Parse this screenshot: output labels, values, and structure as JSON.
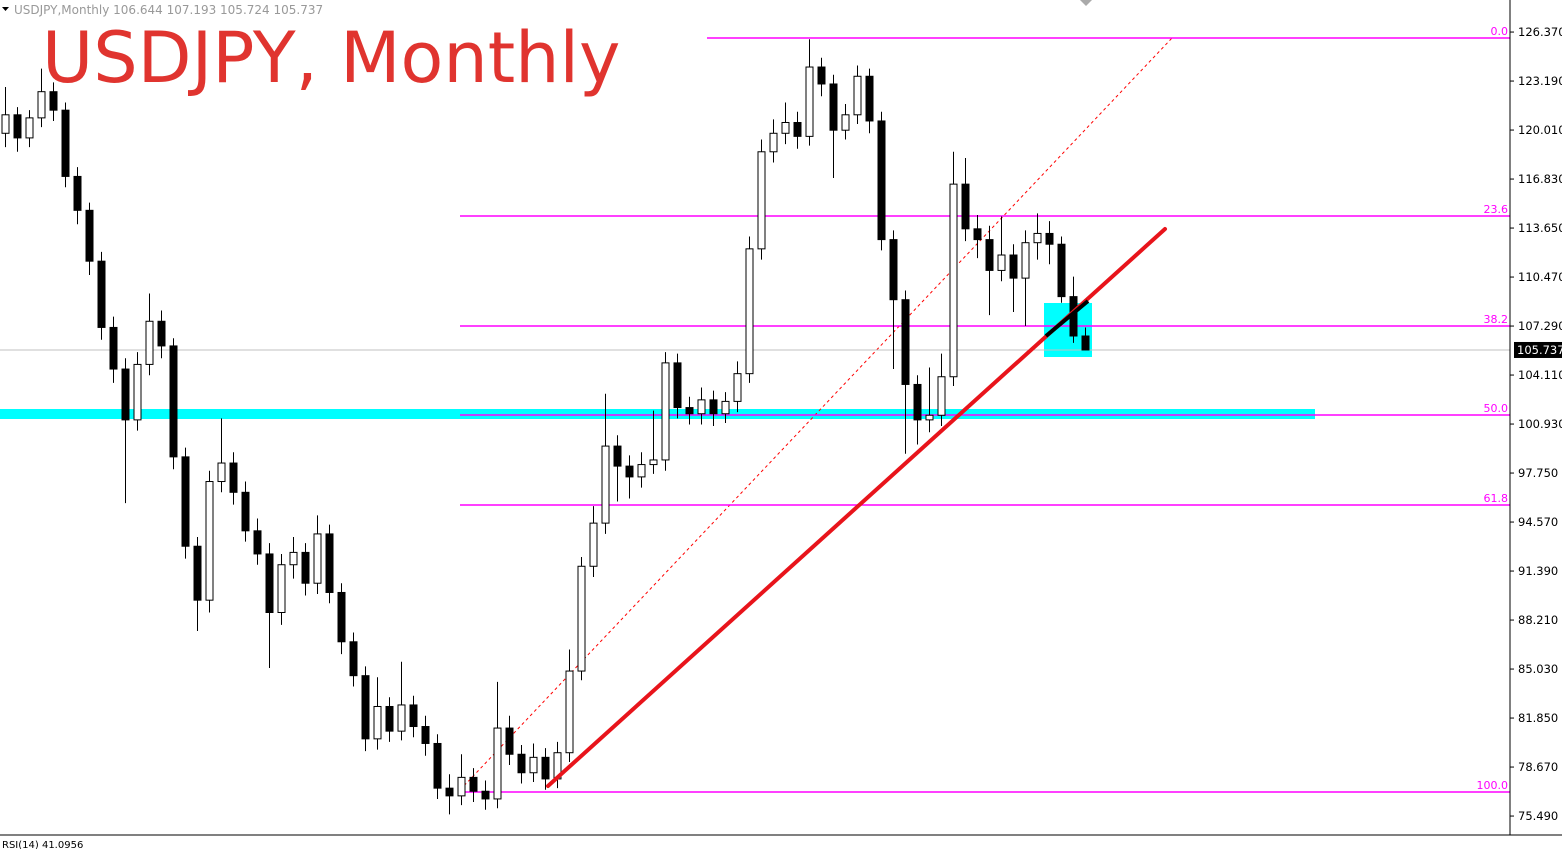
{
  "chart_data": {
    "type": "candlestick",
    "title": "USDJPY, Monthly",
    "symbol_header": "USDJPY,Monthly  106.644 107.193 105.724 105.737",
    "indicator_label": "RSI(14) 41.0956",
    "last_price": 105.737,
    "ylim": [
      74.26,
      128.45
    ],
    "yticks": [
      {
        "value": 126.37,
        "label": "126.370"
      },
      {
        "value": 123.19,
        "label": "123.190"
      },
      {
        "value": 120.01,
        "label": "120.010"
      },
      {
        "value": 116.83,
        "label": "116.830"
      },
      {
        "value": 113.65,
        "label": "113.650"
      },
      {
        "value": 110.47,
        "label": "110.470"
      },
      {
        "value": 107.29,
        "label": "107.290"
      },
      {
        "value": 104.11,
        "label": "104.110"
      },
      {
        "value": 100.93,
        "label": "100.930"
      },
      {
        "value": 97.75,
        "label": "97.750"
      },
      {
        "value": 94.57,
        "label": "94.570"
      },
      {
        "value": 91.39,
        "label": "91.390"
      },
      {
        "value": 88.21,
        "label": "88.210"
      },
      {
        "value": 85.03,
        "label": "85.030"
      },
      {
        "value": 81.85,
        "label": "81.850"
      },
      {
        "value": 78.67,
        "label": "78.670"
      },
      {
        "value": 75.49,
        "label": "75.490"
      }
    ],
    "fib_levels": [
      {
        "ratio": "0.0",
        "price": 125.98
      },
      {
        "ratio": "23.6",
        "price": 114.43
      },
      {
        "ratio": "38.2",
        "price": 107.29
      },
      {
        "ratio": "50.0",
        "price": 101.52
      },
      {
        "ratio": "61.8",
        "price": 95.68
      },
      {
        "ratio": "100.0",
        "price": 77.05
      }
    ],
    "candles": [
      [
        119.8,
        122.8,
        118.9,
        121.0
      ],
      [
        121.0,
        121.5,
        118.6,
        119.5
      ],
      [
        119.5,
        121.3,
        118.9,
        120.8
      ],
      [
        120.8,
        124.0,
        120.2,
        122.5
      ],
      [
        122.5,
        123.1,
        120.6,
        121.3
      ],
      [
        121.3,
        121.8,
        116.3,
        117.0
      ],
      [
        117.0,
        117.6,
        113.9,
        114.8
      ],
      [
        114.8,
        115.3,
        110.6,
        111.5
      ],
      [
        111.5,
        112.1,
        106.4,
        107.2
      ],
      [
        107.2,
        107.9,
        103.6,
        104.5
      ],
      [
        104.5,
        105.2,
        95.8,
        101.2
      ],
      [
        101.2,
        105.6,
        100.5,
        104.8
      ],
      [
        104.8,
        109.4,
        104.1,
        107.6
      ],
      [
        107.6,
        108.3,
        105.2,
        106.0
      ],
      [
        106.0,
        106.5,
        98.0,
        98.8
      ],
      [
        98.8,
        99.4,
        92.2,
        93.0
      ],
      [
        93.0,
        93.6,
        87.5,
        89.5
      ],
      [
        89.5,
        97.9,
        88.7,
        97.2
      ],
      [
        97.2,
        101.3,
        96.5,
        98.4
      ],
      [
        98.4,
        99.1,
        95.7,
        96.5
      ],
      [
        96.5,
        97.2,
        93.3,
        94.0
      ],
      [
        94.0,
        94.8,
        91.8,
        92.5
      ],
      [
        92.5,
        93.2,
        85.1,
        88.7
      ],
      [
        88.7,
        92.5,
        87.9,
        91.8
      ],
      [
        91.8,
        93.6,
        90.9,
        92.6
      ],
      [
        92.6,
        93.2,
        89.8,
        90.6
      ],
      [
        90.6,
        95.0,
        89.9,
        93.8
      ],
      [
        93.8,
        94.4,
        89.3,
        90.0
      ],
      [
        90.0,
        90.6,
        86.0,
        86.8
      ],
      [
        86.8,
        87.4,
        83.9,
        84.6
      ],
      [
        84.6,
        85.2,
        79.7,
        80.5
      ],
      [
        80.5,
        84.5,
        79.8,
        82.6
      ],
      [
        82.6,
        83.2,
        80.3,
        81.0
      ],
      [
        81.0,
        85.5,
        80.4,
        82.7
      ],
      [
        82.7,
        83.3,
        80.6,
        81.3
      ],
      [
        81.3,
        82.0,
        79.4,
        80.2
      ],
      [
        80.2,
        80.8,
        76.6,
        77.3
      ],
      [
        77.3,
        78.2,
        75.6,
        76.8
      ],
      [
        76.8,
        79.5,
        76.2,
        78.0
      ],
      [
        78.0,
        78.6,
        76.4,
        77.1
      ],
      [
        77.1,
        77.8,
        75.9,
        76.6
      ],
      [
        76.6,
        84.2,
        76.0,
        81.2
      ],
      [
        81.2,
        82.0,
        78.8,
        79.5
      ],
      [
        79.5,
        80.1,
        77.6,
        78.3
      ],
      [
        78.3,
        80.2,
        77.7,
        79.3
      ],
      [
        79.3,
        79.9,
        77.2,
        77.9
      ],
      [
        77.9,
        80.3,
        77.3,
        79.6
      ],
      [
        79.6,
        86.3,
        79.0,
        84.9
      ],
      [
        84.9,
        92.3,
        84.3,
        91.7
      ],
      [
        91.7,
        95.6,
        91.0,
        94.5
      ],
      [
        94.5,
        102.9,
        93.8,
        99.5
      ],
      [
        99.5,
        100.2,
        95.9,
        98.2
      ],
      [
        98.2,
        98.9,
        96.1,
        97.5
      ],
      [
        97.5,
        99.1,
        96.8,
        98.3
      ],
      [
        98.3,
        101.8,
        97.7,
        98.6
      ],
      [
        98.6,
        105.6,
        97.9,
        104.9
      ],
      [
        104.9,
        105.5,
        101.3,
        102.0
      ],
      [
        102.0,
        102.7,
        100.9,
        101.6
      ],
      [
        101.6,
        103.3,
        100.9,
        102.5
      ],
      [
        102.5,
        103.1,
        100.8,
        101.6
      ],
      [
        101.6,
        103.0,
        101.0,
        102.4
      ],
      [
        102.4,
        105.0,
        101.7,
        104.2
      ],
      [
        104.2,
        113.1,
        103.6,
        112.3
      ],
      [
        112.3,
        119.4,
        111.6,
        118.6
      ],
      [
        118.6,
        120.7,
        117.9,
        119.8
      ],
      [
        119.8,
        121.8,
        119.1,
        120.5
      ],
      [
        120.5,
        121.2,
        118.8,
        119.6
      ],
      [
        119.6,
        125.9,
        119.0,
        124.1
      ],
      [
        124.1,
        124.7,
        122.2,
        123.0
      ],
      [
        123.0,
        123.6,
        116.9,
        120.0
      ],
      [
        120.0,
        121.7,
        119.4,
        121.0
      ],
      [
        121.0,
        124.2,
        120.4,
        123.5
      ],
      [
        123.5,
        124.0,
        119.8,
        120.6
      ],
      [
        120.6,
        121.2,
        112.2,
        112.9
      ],
      [
        112.9,
        113.5,
        104.5,
        109.0
      ],
      [
        109.0,
        109.6,
        99.0,
        103.5
      ],
      [
        103.5,
        104.1,
        99.6,
        101.2
      ],
      [
        101.2,
        104.6,
        100.4,
        101.5
      ],
      [
        101.5,
        105.5,
        100.8,
        104.0
      ],
      [
        104.0,
        118.6,
        103.4,
        116.5
      ],
      [
        116.5,
        118.2,
        112.8,
        113.6
      ],
      [
        113.6,
        114.5,
        111.7,
        112.9
      ],
      [
        112.9,
        113.8,
        108.0,
        110.9
      ],
      [
        110.9,
        114.4,
        110.2,
        111.9
      ],
      [
        111.9,
        112.6,
        108.2,
        110.4
      ],
      [
        110.4,
        113.5,
        107.3,
        112.7
      ],
      [
        112.7,
        114.6,
        111.6,
        113.3
      ],
      [
        113.3,
        114.1,
        111.3,
        112.6
      ],
      [
        112.6,
        113.1,
        108.8,
        109.2
      ],
      [
        109.2,
        110.5,
        106.2,
        106.644
      ],
      [
        106.644,
        107.193,
        105.724,
        105.737
      ]
    ]
  }
}
